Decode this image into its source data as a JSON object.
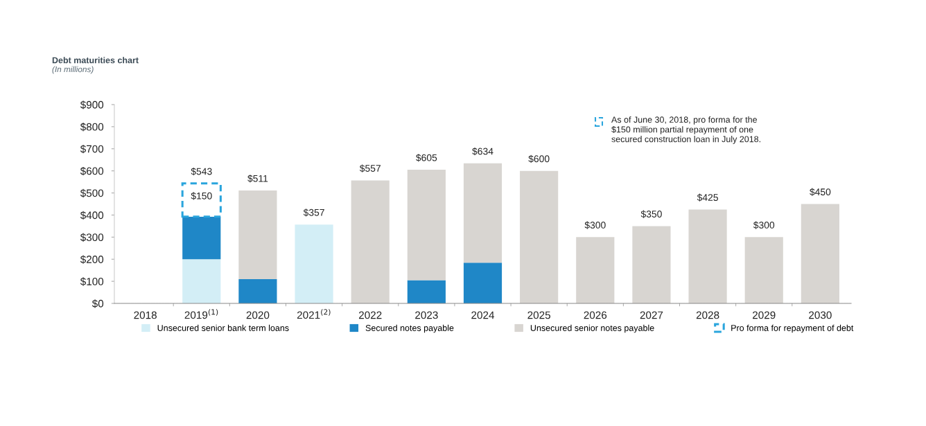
{
  "chart_data": {
    "type": "bar",
    "stacked": true,
    "title": "Debt maturities chart",
    "subtitle": "(In millions)",
    "categories": [
      "2018",
      "2019$^{(1)}$",
      "2020",
      "2021$^{(2)}$",
      "2022",
      "2023",
      "2024",
      "2025",
      "2026",
      "2027",
      "2028",
      "2029",
      "2030"
    ],
    "series": [
      {
        "name": "Unsecured senior bank term loans",
        "color": "#d3eef6",
        "values": [
          null,
          200,
          null,
          357,
          null,
          null,
          null,
          null,
          null,
          null,
          null,
          null,
          null
        ]
      },
      {
        "name": "Secured notes payable",
        "color": "#1f87c7",
        "values": [
          null,
          193,
          110,
          null,
          null,
          105,
          184,
          null,
          null,
          null,
          null,
          null,
          null
        ]
      },
      {
        "name": "Unsecured senior notes payable",
        "color": "#d8d5d1",
        "values": [
          null,
          null,
          401,
          null,
          557,
          500,
          450,
          600,
          300,
          350,
          425,
          300,
          450
        ]
      },
      {
        "name": "Pro forma for repayment of debt",
        "color": "#2aa5dd",
        "line_style": "dashed",
        "values": [
          null,
          150,
          null,
          null,
          null,
          null,
          null,
          null,
          null,
          null,
          null,
          null,
          null
        ],
        "value_labels": [
          null,
          "$150",
          null,
          null,
          null,
          null,
          null,
          null,
          null,
          null,
          null,
          null,
          null
        ]
      }
    ],
    "totals": [
      null,
      "$543",
      "$511",
      "$357",
      "$557",
      "$605",
      "$634",
      "$600",
      "$300",
      "$350",
      "$425",
      "$300",
      "$450"
    ],
    "ylim": [
      0,
      900
    ],
    "yticks": [
      {
        "value": 0,
        "label": "$0"
      },
      {
        "value": 100,
        "label": "$100"
      },
      {
        "value": 200,
        "label": "$200"
      },
      {
        "value": 300,
        "label": "$300"
      },
      {
        "value": 400,
        "label": "$400"
      },
      {
        "value": 500,
        "label": "$500"
      },
      {
        "value": 600,
        "label": "$600"
      },
      {
        "value": 700,
        "label": "$700"
      },
      {
        "value": 800,
        "label": "$800"
      },
      {
        "value": 900,
        "label": "$900"
      }
    ],
    "legend": "bottom",
    "grid": false,
    "annotations": [
      "As of June 30, 2018, pro forma for the\n$150 million partial repayment of one\nsecured construction loan in July 2018."
    ]
  }
}
